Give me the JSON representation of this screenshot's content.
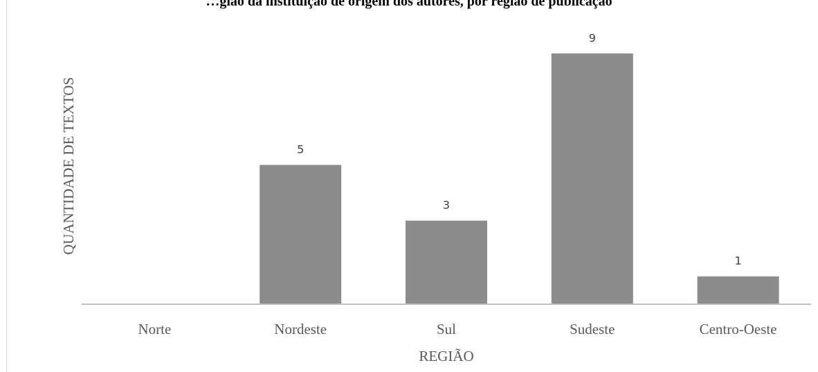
{
  "chart_data": {
    "type": "bar",
    "title": "…gião da instituição de origem dos autores, por região de publicação",
    "xlabel": "REGIÃO",
    "ylabel": "QUANTIDADE DE TEXTOS",
    "categories": [
      "Norte",
      "Nordeste",
      "Sul",
      "Sudeste",
      "Centro-Oeste"
    ],
    "values": [
      0,
      5,
      3,
      9,
      1
    ],
    "data_labels": [
      "",
      "5",
      "3",
      "9",
      "1"
    ],
    "ylim": [
      0,
      9
    ],
    "grid": false,
    "legend": "none",
    "colors": {
      "bar": "#8c8c8c",
      "axis": "#bfbfbf",
      "text": "#595959",
      "data_label": "#404040"
    }
  }
}
